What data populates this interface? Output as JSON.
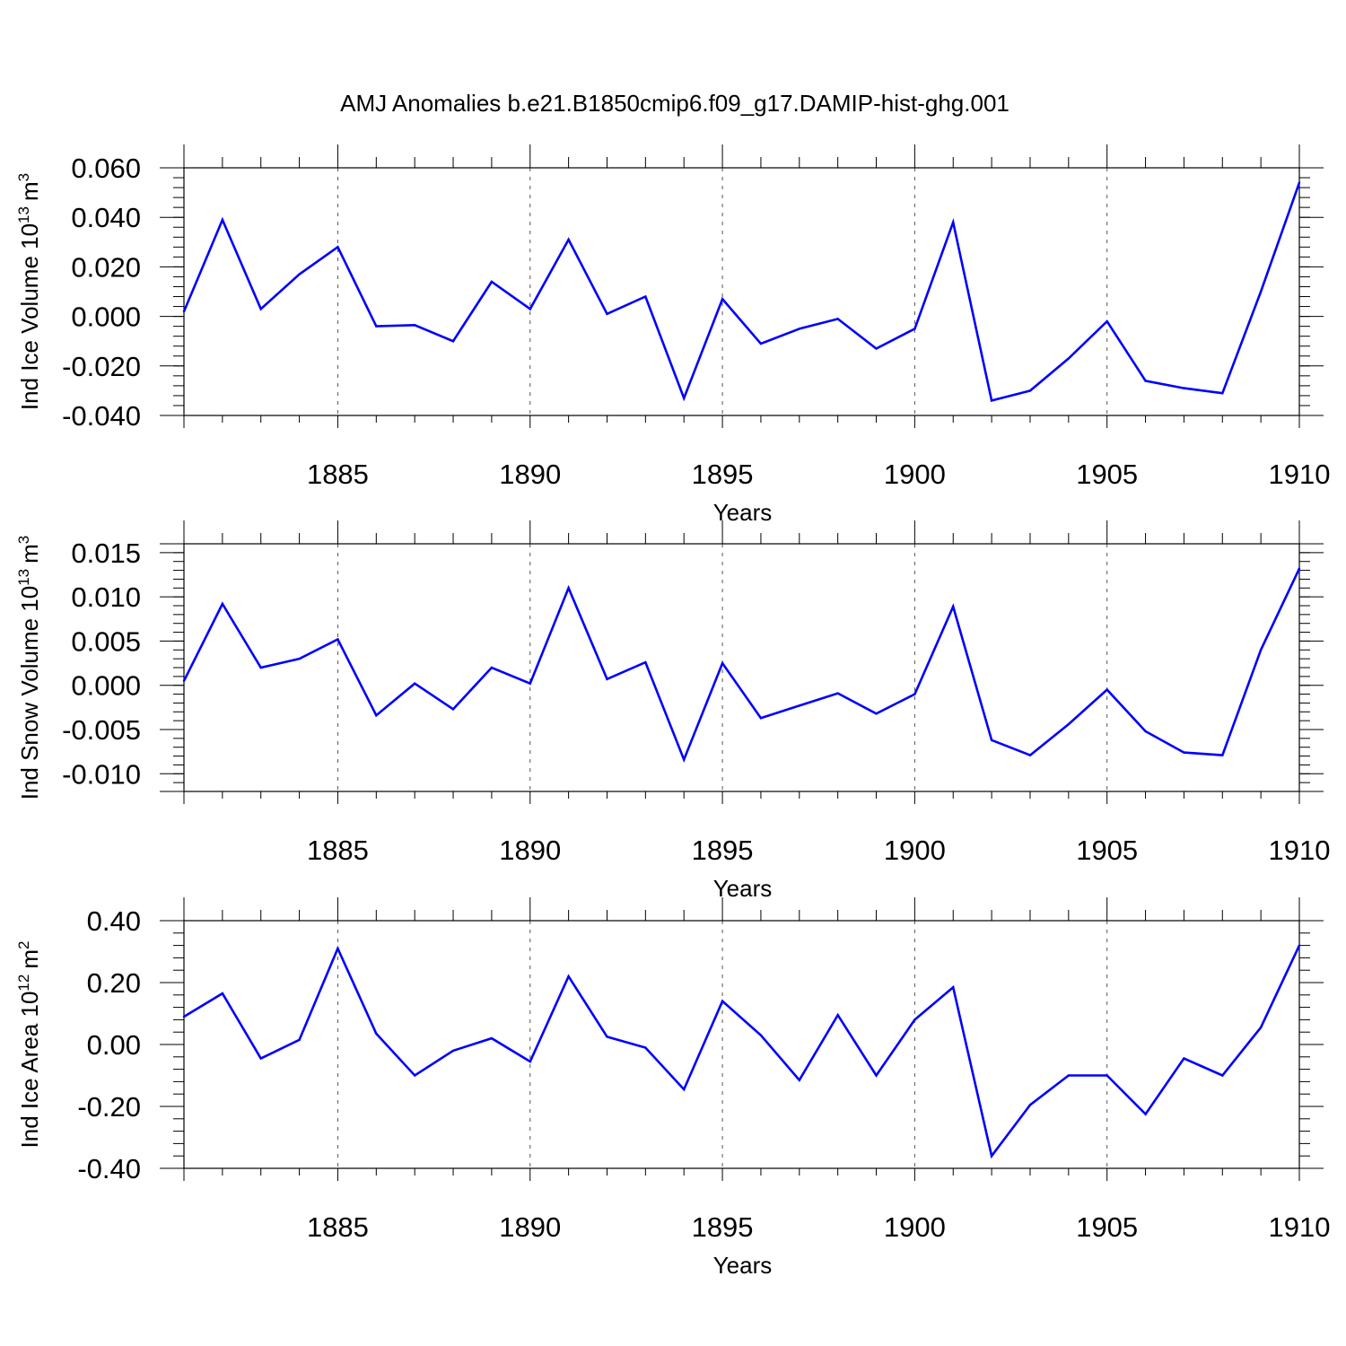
{
  "title": "AMJ Anomalies b.e21.B1850cmip6.f09_g17.DAMIP-hist-ghg.001",
  "colors": {
    "line": "#0000ff",
    "axis": "#000000",
    "grid": "#555555"
  },
  "chart_data": [
    {
      "type": "line",
      "ylabel_main": "Ind Ice Volume 10",
      "ylabel_exp": "13",
      "ylabel_unit": "m",
      "ylabel_unit_exp": "3",
      "xlabel": "Years",
      "xlim": [
        1881,
        1910
      ],
      "ylim": [
        -0.04,
        0.06
      ],
      "yticks": [
        -0.04,
        -0.02,
        0.0,
        0.02,
        0.04,
        0.06
      ],
      "ytick_labels": [
        "-0.040",
        "-0.020",
        "0.000",
        "0.020",
        "0.040",
        "0.060"
      ],
      "xticks": [
        1885,
        1890,
        1895,
        1900,
        1905,
        1910
      ],
      "xtick_labels": [
        "1885",
        "1890",
        "1895",
        "1900",
        "1905",
        "1910"
      ],
      "x": [
        1881,
        1882,
        1883,
        1884,
        1885,
        1886,
        1887,
        1888,
        1889,
        1890,
        1891,
        1892,
        1893,
        1894,
        1895,
        1896,
        1897,
        1898,
        1899,
        1900,
        1901,
        1902,
        1903,
        1904,
        1905,
        1906,
        1907,
        1908,
        1909,
        1910
      ],
      "values": [
        0.002,
        0.039,
        0.003,
        0.017,
        0.028,
        -0.004,
        -0.0035,
        -0.01,
        0.014,
        0.003,
        0.031,
        0.001,
        0.008,
        -0.033,
        0.007,
        -0.011,
        -0.005,
        -0.001,
        -0.013,
        -0.005,
        0.038,
        -0.034,
        -0.03,
        -0.017,
        -0.002,
        -0.026,
        -0.029,
        -0.031,
        0.01,
        0.054
      ]
    },
    {
      "type": "line",
      "ylabel_main": "Ind Snow Volume 10",
      "ylabel_exp": "13",
      "ylabel_unit": "m",
      "ylabel_unit_exp": "3",
      "xlabel": "Years",
      "xlim": [
        1881,
        1910
      ],
      "ylim": [
        -0.012,
        0.016
      ],
      "yticks": [
        -0.01,
        -0.005,
        0.0,
        0.005,
        0.01,
        0.015
      ],
      "ytick_labels": [
        "-0.010",
        "-0.005",
        "0.000",
        "0.005",
        "0.010",
        "0.015"
      ],
      "xticks": [
        1885,
        1890,
        1895,
        1900,
        1905,
        1910
      ],
      "xtick_labels": [
        "1885",
        "1890",
        "1895",
        "1900",
        "1905",
        "1910"
      ],
      "x": [
        1881,
        1882,
        1883,
        1884,
        1885,
        1886,
        1887,
        1888,
        1889,
        1890,
        1891,
        1892,
        1893,
        1894,
        1895,
        1896,
        1897,
        1898,
        1899,
        1900,
        1901,
        1902,
        1903,
        1904,
        1905,
        1906,
        1907,
        1908,
        1909,
        1910
      ],
      "values": [
        0.0005,
        0.0092,
        0.002,
        0.003,
        0.0052,
        -0.0034,
        0.0002,
        -0.0027,
        0.002,
        0.0002,
        0.011,
        0.0007,
        0.0026,
        -0.0084,
        0.0025,
        -0.0037,
        -0.0023,
        -0.0009,
        -0.0032,
        -0.001,
        0.0089,
        -0.0062,
        -0.0079,
        -0.0044,
        -0.0005,
        -0.0052,
        -0.0076,
        -0.0079,
        0.004,
        0.0132
      ]
    },
    {
      "type": "line",
      "ylabel_main": "Ind Ice Area 10",
      "ylabel_exp": "12",
      "ylabel_unit": "m",
      "ylabel_unit_exp": "2",
      "xlabel": "Years",
      "xlim": [
        1881,
        1910
      ],
      "ylim": [
        -0.4,
        0.4
      ],
      "yticks": [
        -0.4,
        -0.2,
        0.0,
        0.2,
        0.4
      ],
      "ytick_labels": [
        "-0.40",
        "-0.20",
        "0.00",
        "0.20",
        "0.40"
      ],
      "xticks": [
        1885,
        1890,
        1895,
        1900,
        1905,
        1910
      ],
      "xtick_labels": [
        "1885",
        "1890",
        "1895",
        "1900",
        "1905",
        "1910"
      ],
      "x": [
        1881,
        1882,
        1883,
        1884,
        1885,
        1886,
        1887,
        1888,
        1889,
        1890,
        1891,
        1892,
        1893,
        1894,
        1895,
        1896,
        1897,
        1898,
        1899,
        1900,
        1901,
        1902,
        1903,
        1904,
        1905,
        1906,
        1907,
        1908,
        1909,
        1910
      ],
      "values": [
        0.09,
        0.165,
        -0.045,
        0.015,
        0.31,
        0.035,
        -0.1,
        -0.02,
        0.02,
        -0.055,
        0.22,
        0.025,
        -0.01,
        -0.145,
        0.14,
        0.03,
        -0.115,
        0.095,
        -0.1,
        0.08,
        0.185,
        -0.36,
        -0.195,
        -0.1,
        -0.1,
        -0.225,
        -0.045,
        -0.1,
        0.055,
        0.32
      ]
    }
  ]
}
